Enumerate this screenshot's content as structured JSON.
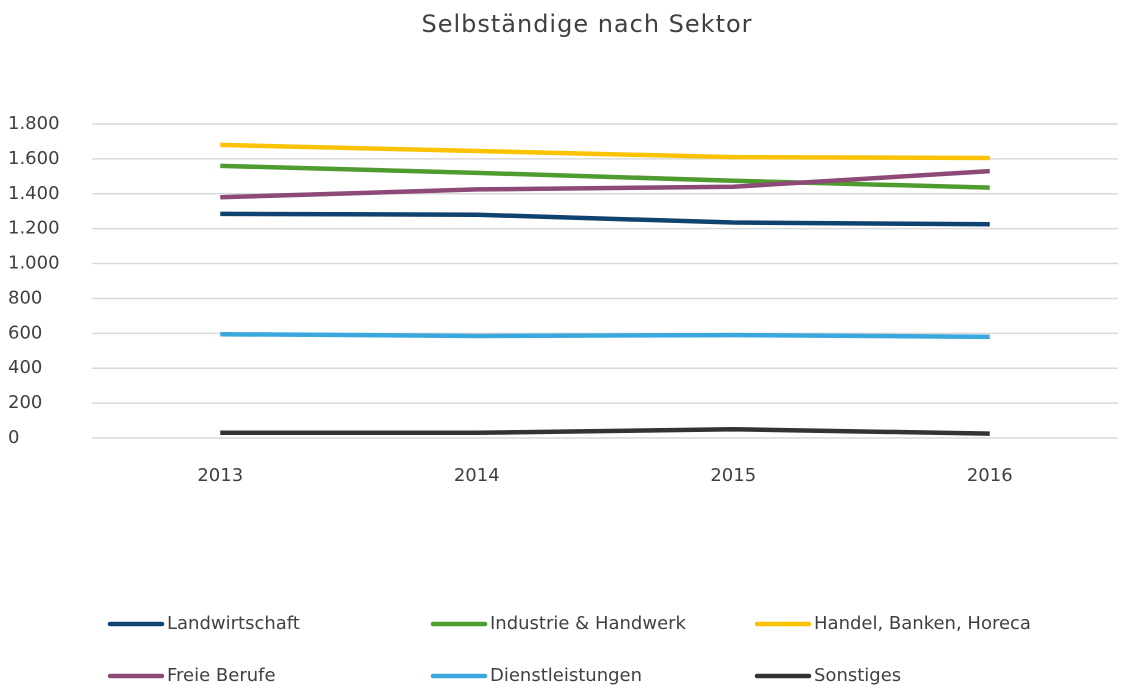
{
  "chart_data": {
    "type": "line",
    "title": "Selbständige nach Sektor",
    "categories": [
      "2013",
      "2014",
      "2015",
      "2016"
    ],
    "series": [
      {
        "name": "Landwirtschaft",
        "color": "#10426f",
        "values": [
          1285,
          1280,
          1235,
          1225
        ]
      },
      {
        "name": "Industrie & Handwerk",
        "color": "#4e9b2f",
        "values": [
          1560,
          1520,
          1475,
          1435
        ]
      },
      {
        "name": "Handel, Banken, Horeca",
        "color": "#fbc200",
        "values": [
          1680,
          1645,
          1610,
          1605
        ]
      },
      {
        "name": "Freie Berufe",
        "color": "#8e4a77",
        "values": [
          1380,
          1425,
          1440,
          1530
        ]
      },
      {
        "name": "Dienstleistungen",
        "color": "#3aa8dd",
        "values": [
          595,
          585,
          590,
          580
        ]
      },
      {
        "name": "Sonstiges",
        "color": "#333333",
        "values": [
          30,
          30,
          50,
          25
        ]
      }
    ],
    "ylim": [
      0,
      1800
    ],
    "yticks": [
      0,
      200,
      400,
      600,
      800,
      {
        "value": 1000,
        "label": "1.000"
      },
      {
        "value": 1200,
        "label": "1.200"
      },
      {
        "value": 1400,
        "label": "1.400"
      },
      {
        "value": 1600,
        "label": "1.600"
      },
      {
        "value": 1800,
        "label": "1.800"
      }
    ],
    "grid": true,
    "legend": "bottom"
  }
}
